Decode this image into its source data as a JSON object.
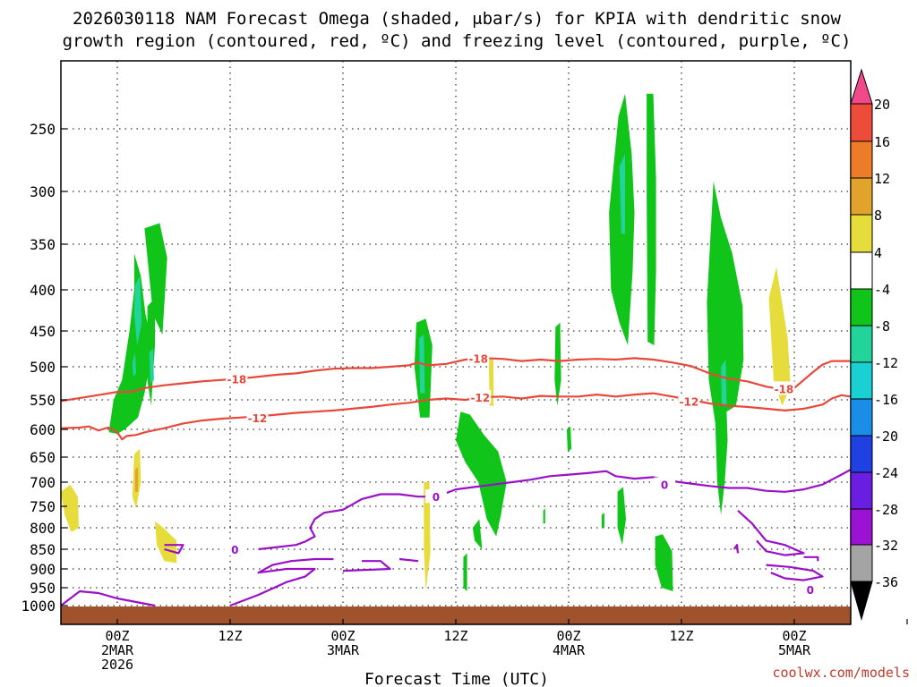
{
  "chart_data": {
    "type": "heatmap",
    "title_lines": [
      "2026030118 NAM Forecast Omega (shaded, μbar/s) for KPIA with dendritic snow",
      "growth region (contoured, red, ºC) and freezing level (contoured, purple, ºC)"
    ],
    "xlabel": "Forecast Time (UTC)",
    "credit": "coolwx.com/models",
    "y_axis": {
      "unit": "hPa",
      "ticks": [
        250,
        300,
        350,
        400,
        450,
        500,
        550,
        600,
        650,
        700,
        750,
        800,
        850,
        900,
        950,
        1000
      ],
      "tick_labels": [
        "250",
        "300",
        "350",
        "400",
        "450",
        "500",
        "550",
        "600",
        "650",
        "700",
        "750",
        "800",
        "850",
        "900",
        "950",
        "1000"
      ]
    },
    "x_axis": {
      "unit": "hours since 2026-03-01 18Z",
      "ticks": [
        6,
        18,
        30,
        42,
        54,
        66,
        78,
        90
      ],
      "tick_labels": [
        [
          "00Z",
          "2MAR",
          "2026"
        ],
        [
          "12Z"
        ],
        [
          "00Z",
          "3MAR"
        ],
        [
          "12Z"
        ],
        [
          "00Z",
          "4MAR"
        ],
        [
          "12Z"
        ],
        [
          "00Z",
          "5MAR"
        ],
        [
          ""
        ]
      ]
    },
    "colorbar": {
      "labels": [
        "20",
        "16",
        "12",
        "8",
        "4",
        "-4",
        "-8",
        "-12",
        "-16",
        "-20",
        "-24",
        "-28",
        "-32",
        "-36"
      ],
      "colors": [
        "#f2498a",
        "#ee4c3a",
        "#ec7c2a",
        "#e2a32c",
        "#e6dc3c",
        "#ffffff",
        "#11c41a",
        "#22d39a",
        "#1ad0d2",
        "#1a8ee6",
        "#2040e2",
        "#6a1ee0",
        "#9a12d2",
        "#a4a4a4",
        "#000000"
      ]
    },
    "series": [
      {
        "name": "-18",
        "color": "#e8483b",
        "points": [
          [
            0,
            552
          ],
          [
            3,
            545
          ],
          [
            6,
            538
          ],
          [
            7.5,
            538
          ],
          [
            9,
            532
          ],
          [
            11,
            528
          ],
          [
            13,
            525
          ],
          [
            15,
            522
          ],
          [
            17,
            520
          ],
          [
            19,
            518
          ],
          [
            21,
            515
          ],
          [
            23,
            512
          ],
          [
            25,
            510
          ],
          [
            27,
            506
          ],
          [
            29,
            503
          ],
          [
            31,
            502
          ],
          [
            33,
            502
          ],
          [
            35,
            500
          ],
          [
            37,
            498
          ],
          [
            38,
            494
          ],
          [
            39,
            498
          ],
          [
            41,
            496
          ],
          [
            43,
            490
          ],
          [
            45,
            488
          ],
          [
            47,
            489
          ],
          [
            49,
            492
          ],
          [
            51,
            490
          ],
          [
            53,
            492
          ],
          [
            55,
            490
          ],
          [
            57,
            489
          ],
          [
            59,
            490
          ],
          [
            61,
            488
          ],
          [
            63,
            490
          ],
          [
            65,
            494
          ],
          [
            67,
            499
          ],
          [
            69,
            510
          ],
          [
            71,
            518
          ],
          [
            73,
            522
          ],
          [
            75,
            530
          ],
          [
            77,
            535
          ],
          [
            78,
            532
          ],
          [
            79,
            520
          ],
          [
            80,
            508
          ],
          [
            81,
            497
          ],
          [
            82,
            492
          ],
          [
            84,
            492
          ]
        ]
      },
      {
        "name": "-12",
        "color": "#e8483b",
        "points": [
          [
            0,
            598
          ],
          [
            2,
            597
          ],
          [
            3,
            595
          ],
          [
            4,
            602
          ],
          [
            5,
            597
          ],
          [
            5.5,
            600
          ],
          [
            6,
            605
          ],
          [
            6.5,
            618
          ],
          [
            7,
            612
          ],
          [
            8,
            610
          ],
          [
            9,
            605
          ],
          [
            11,
            598
          ],
          [
            13,
            590
          ],
          [
            15,
            585
          ],
          [
            17,
            582
          ],
          [
            19,
            580
          ],
          [
            21,
            578
          ],
          [
            23,
            575
          ],
          [
            25,
            572
          ],
          [
            27,
            570
          ],
          [
            29,
            568
          ],
          [
            31,
            565
          ],
          [
            33,
            562
          ],
          [
            35,
            558
          ],
          [
            37,
            555
          ],
          [
            39,
            550
          ],
          [
            41,
            548
          ],
          [
            43,
            550
          ],
          [
            45,
            546
          ],
          [
            47,
            545
          ],
          [
            49,
            548
          ],
          [
            51,
            544
          ],
          [
            53,
            545
          ],
          [
            55,
            545
          ],
          [
            57,
            542
          ],
          [
            59,
            545
          ],
          [
            61,
            542
          ],
          [
            63,
            540
          ],
          [
            65,
            545
          ],
          [
            67,
            550
          ],
          [
            69,
            556
          ],
          [
            71,
            560
          ],
          [
            73,
            562
          ],
          [
            75,
            565
          ],
          [
            77,
            568
          ],
          [
            79,
            565
          ],
          [
            81,
            558
          ],
          [
            82,
            548
          ],
          [
            83,
            543
          ],
          [
            84,
            545
          ]
        ]
      },
      {
        "name": "0",
        "color": "#9a10c8",
        "points": [
          [
            21,
            850
          ],
          [
            23,
            845
          ],
          [
            25,
            840
          ],
          [
            26,
            832
          ],
          [
            27,
            820
          ],
          [
            26.5,
            800
          ],
          [
            27,
            780
          ],
          [
            28,
            765
          ],
          [
            30,
            758
          ],
          [
            32,
            735
          ],
          [
            34,
            725
          ],
          [
            36,
            725
          ],
          [
            38,
            730
          ],
          [
            40,
            730
          ],
          [
            42,
            715
          ],
          [
            44,
            710
          ],
          [
            46,
            705
          ],
          [
            48,
            700
          ],
          [
            50,
            695
          ],
          [
            52,
            688
          ],
          [
            54,
            685
          ],
          [
            56,
            682
          ],
          [
            58,
            678
          ],
          [
            59,
            688
          ],
          [
            61,
            693
          ],
          [
            63,
            690
          ],
          [
            65,
            698
          ],
          [
            67,
            703
          ],
          [
            69,
            708
          ],
          [
            71,
            712
          ],
          [
            73,
            712
          ],
          [
            75,
            718
          ],
          [
            77,
            720
          ],
          [
            79,
            715
          ],
          [
            81,
            705
          ],
          [
            83,
            685
          ],
          [
            84,
            675
          ]
        ]
      }
    ]
  }
}
